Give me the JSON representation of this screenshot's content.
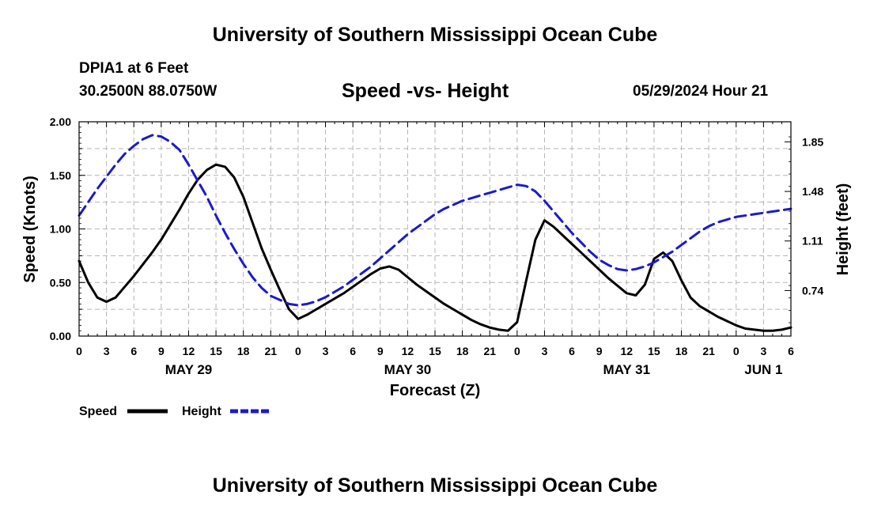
{
  "page": {
    "title": "University of Southern Mississippi Ocean Cube",
    "footer_title": "University of Southern Mississippi Ocean Cube",
    "station": "DPIA1 at 6 Feet",
    "coords": "30.2500N  88.0750W",
    "chart_title": "Speed -vs- Height",
    "timestamp": "05/29/2024 Hour 21"
  },
  "colors": {
    "speed": "#000000",
    "height": "#1a1acc",
    "grid": "#b4b4b4"
  },
  "chart_data": {
    "type": "line",
    "title": "Speed -vs- Height",
    "xlabel": "Forecast (Z)",
    "ylabel": "Speed (Knots)",
    "y2label": "Height (feet)",
    "xlim": [
      0,
      78
    ],
    "ylim": [
      0,
      2.0
    ],
    "y2lim": [
      0.4,
      2.0
    ],
    "grid": true,
    "x_tick_labels": [
      "0",
      "3",
      "6",
      "9",
      "12",
      "15",
      "18",
      "21",
      "0",
      "3",
      "6",
      "9",
      "12",
      "15",
      "18",
      "21",
      "0",
      "3",
      "6",
      "9",
      "12",
      "15",
      "18",
      "21",
      "0",
      "3",
      "6"
    ],
    "y_tick_labels": [
      "0.00",
      "0.50",
      "1.00",
      "1.50",
      "2.00"
    ],
    "y2_tick_labels": [
      "0.74",
      "1.11",
      "1.48",
      "1.85"
    ],
    "y2_ticks": [
      0.74,
      1.11,
      1.48,
      1.85
    ],
    "date_labels": [
      {
        "label": "MAY 29",
        "x": 12
      },
      {
        "label": "MAY 30",
        "x": 36
      },
      {
        "label": "MAY 31",
        "x": 60
      },
      {
        "label": "JUN 1",
        "x": 75
      }
    ],
    "series": [
      {
        "name": "Speed",
        "axis": "left",
        "style": "solid",
        "x": [
          0,
          1,
          2,
          3,
          4,
          5,
          6,
          7,
          8,
          9,
          10,
          11,
          12,
          13,
          14,
          15,
          16,
          17,
          18,
          19,
          20,
          21,
          22,
          23,
          24,
          25,
          26,
          27,
          28,
          29,
          30,
          31,
          32,
          33,
          34,
          35,
          36,
          37,
          38,
          39,
          40,
          41,
          42,
          43,
          44,
          45,
          46,
          47,
          48,
          49,
          50,
          51,
          52,
          53,
          54,
          55,
          56,
          57,
          58,
          59,
          60,
          61,
          62,
          63,
          64,
          65,
          66,
          67,
          68,
          69,
          70,
          71,
          72,
          73,
          74,
          75,
          76,
          77,
          78
        ],
        "values": [
          0.7,
          0.5,
          0.36,
          0.32,
          0.36,
          0.46,
          0.56,
          0.67,
          0.78,
          0.9,
          1.04,
          1.18,
          1.33,
          1.46,
          1.55,
          1.6,
          1.58,
          1.48,
          1.3,
          1.06,
          0.82,
          0.62,
          0.43,
          0.25,
          0.16,
          0.2,
          0.25,
          0.3,
          0.35,
          0.4,
          0.46,
          0.52,
          0.58,
          0.63,
          0.65,
          0.62,
          0.55,
          0.48,
          0.42,
          0.36,
          0.3,
          0.25,
          0.2,
          0.15,
          0.11,
          0.08,
          0.06,
          0.05,
          0.13,
          0.52,
          0.9,
          1.08,
          1.02,
          0.94,
          0.86,
          0.78,
          0.7,
          0.62,
          0.54,
          0.47,
          0.4,
          0.38,
          0.48,
          0.72,
          0.78,
          0.7,
          0.52,
          0.36,
          0.28,
          0.23,
          0.18,
          0.14,
          0.1,
          0.07,
          0.06,
          0.05,
          0.05,
          0.06,
          0.08
        ]
      },
      {
        "name": "Height",
        "axis": "right",
        "style": "dashed",
        "x": [
          0,
          1,
          2,
          3,
          4,
          5,
          6,
          7,
          8,
          9,
          10,
          11,
          12,
          13,
          14,
          15,
          16,
          17,
          18,
          19,
          20,
          21,
          22,
          23,
          24,
          25,
          26,
          27,
          28,
          29,
          30,
          31,
          32,
          33,
          34,
          35,
          36,
          37,
          38,
          39,
          40,
          41,
          42,
          43,
          44,
          45,
          46,
          47,
          48,
          49,
          50,
          51,
          52,
          53,
          54,
          55,
          56,
          57,
          58,
          59,
          60,
          61,
          62,
          63,
          64,
          65,
          66,
          67,
          68,
          69,
          70,
          71,
          72,
          73,
          74,
          75,
          76,
          77,
          78
        ],
        "values": [
          1.3,
          1.4,
          1.5,
          1.59,
          1.68,
          1.76,
          1.82,
          1.87,
          1.9,
          1.89,
          1.85,
          1.79,
          1.68,
          1.56,
          1.44,
          1.3,
          1.17,
          1.05,
          0.94,
          0.84,
          0.76,
          0.7,
          0.67,
          0.64,
          0.63,
          0.64,
          0.66,
          0.69,
          0.73,
          0.77,
          0.82,
          0.87,
          0.92,
          0.98,
          1.04,
          1.1,
          1.16,
          1.21,
          1.26,
          1.31,
          1.35,
          1.38,
          1.41,
          1.43,
          1.45,
          1.47,
          1.49,
          1.51,
          1.53,
          1.52,
          1.48,
          1.41,
          1.33,
          1.25,
          1.17,
          1.1,
          1.03,
          0.97,
          0.93,
          0.9,
          0.89,
          0.9,
          0.92,
          0.95,
          0.99,
          1.03,
          1.08,
          1.13,
          1.18,
          1.22,
          1.25,
          1.27,
          1.29,
          1.3,
          1.31,
          1.32,
          1.33,
          1.34,
          1.35
        ]
      }
    ],
    "legend": {
      "placement": "bottom-left",
      "entries": [
        "Speed",
        "Height"
      ]
    }
  }
}
